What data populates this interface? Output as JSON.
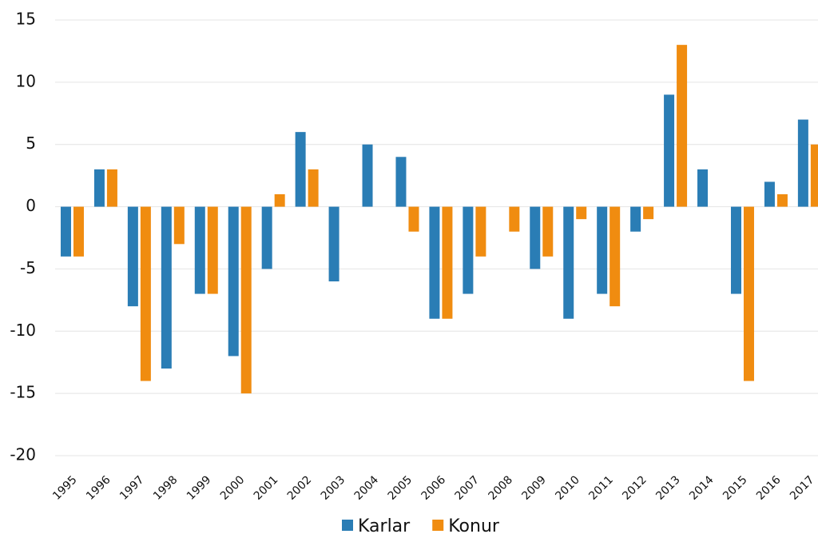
{
  "chart_data": {
    "type": "bar",
    "categories": [
      "1995",
      "1996",
      "1997",
      "1998",
      "1999",
      "2000",
      "2001",
      "2002",
      "2003",
      "2004",
      "2005",
      "2006",
      "2007",
      "2008",
      "2009",
      "2010",
      "2011",
      "2012",
      "2013",
      "2014",
      "2015",
      "2016",
      "2017"
    ],
    "series": [
      {
        "name": "Karlar",
        "color": "#2a7db5",
        "values": [
          -4,
          3,
          -8,
          -13,
          -7,
          -12,
          -5,
          6,
          -6,
          5,
          4,
          -9,
          -7,
          0,
          -5,
          -9,
          -7,
          -2,
          9,
          3,
          -7,
          2,
          7
        ]
      },
      {
        "name": "Konur",
        "color": "#f08c10",
        "values": [
          -4,
          3,
          -14,
          -3,
          -7,
          -15,
          1,
          3,
          0,
          0,
          -2,
          -9,
          -4,
          -2,
          -4,
          -1,
          -8,
          -1,
          13,
          0,
          -14,
          1,
          5
        ]
      }
    ],
    "ylim": [
      -20,
      15
    ],
    "yticks": [
      -20,
      -15,
      -10,
      -5,
      0,
      5,
      10,
      15
    ],
    "grid": true,
    "legend": "bottom"
  }
}
